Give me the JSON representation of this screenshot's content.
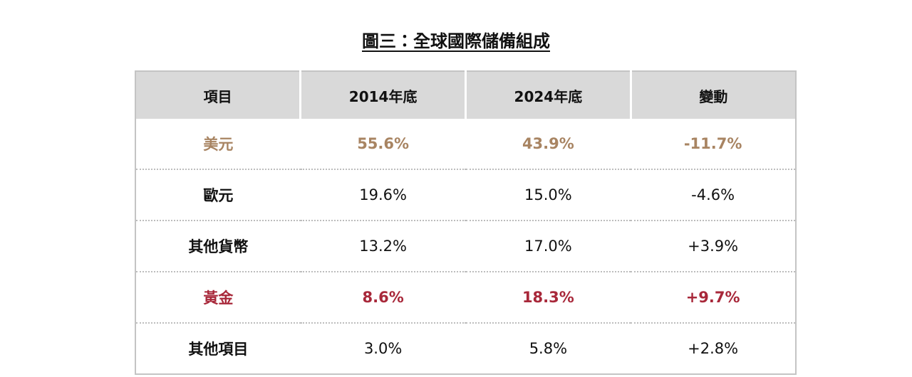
{
  "title": "圖三：全球國際儲備組成",
  "table": {
    "header": [
      "項目",
      "2014年底",
      "2024年底",
      "變動"
    ],
    "rows": [
      [
        "美元",
        "55.6%",
        "43.9%",
        "-11.7%"
      ],
      [
        "歐元",
        "19.6%",
        "15.0%",
        "-4.6%"
      ],
      [
        "其他貨幣",
        "13.2%",
        "17.0%",
        "+3.9%"
      ],
      [
        "黃金",
        "8.6%",
        "18.3%",
        "+9.7%"
      ],
      [
        "其他項目",
        "3.0%",
        "5.8%",
        "+2.8%"
      ]
    ]
  }
}
